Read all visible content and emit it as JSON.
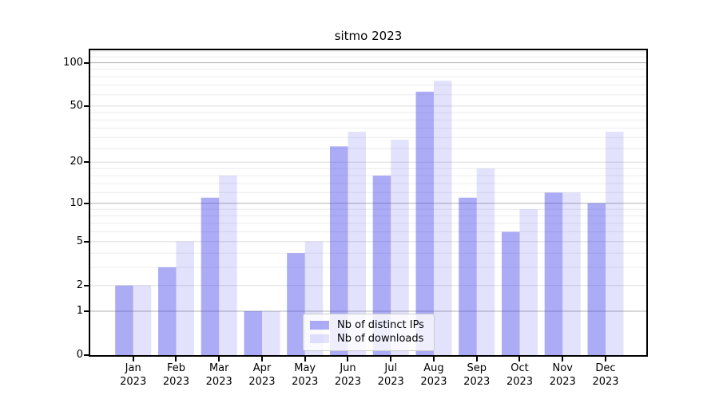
{
  "chart_data": {
    "type": "bar",
    "title": "sitmo 2023",
    "yscale": "log(1+x)",
    "categories": [
      "Jan",
      "Feb",
      "Mar",
      "Apr",
      "May",
      "Jun",
      "Jul",
      "Aug",
      "Sep",
      "Oct",
      "Nov",
      "Dec"
    ],
    "year_label": "2023",
    "series": [
      {
        "name": "Nb of distinct IPs",
        "color": "rgba(72,72,235,0.45)",
        "values": [
          2,
          3,
          11,
          1,
          4,
          26,
          16,
          63,
          11,
          6,
          12,
          10
        ]
      },
      {
        "name": "Nb of downloads",
        "color": "rgba(72,72,235,0.16)",
        "values": [
          2,
          5,
          16,
          1,
          5,
          33,
          29,
          75,
          18,
          9,
          12,
          33
        ]
      }
    ],
    "ytick_labels": [
      0,
      1,
      2,
      5,
      10,
      20,
      50,
      100
    ],
    "ylim": [
      0,
      122
    ],
    "grid": {
      "major_ticks": [
        1,
        10,
        100
      ],
      "mid_ticks": [
        2,
        5,
        20,
        50
      ],
      "minor_ticks": [
        3,
        4,
        6,
        7,
        8,
        9,
        12,
        14,
        16,
        18,
        25,
        30,
        35,
        40,
        45,
        60,
        70,
        80,
        90,
        110,
        120
      ],
      "major_color": "#b0b0b0",
      "mid_color": "#dddddd",
      "minor_color": "#ececec"
    },
    "colors": {
      "spine": "#000000",
      "background": "#ffffff",
      "text": "#000000",
      "legend_border": "#cccccc",
      "legend_background": "rgba(255,255,255,0.8)"
    }
  }
}
